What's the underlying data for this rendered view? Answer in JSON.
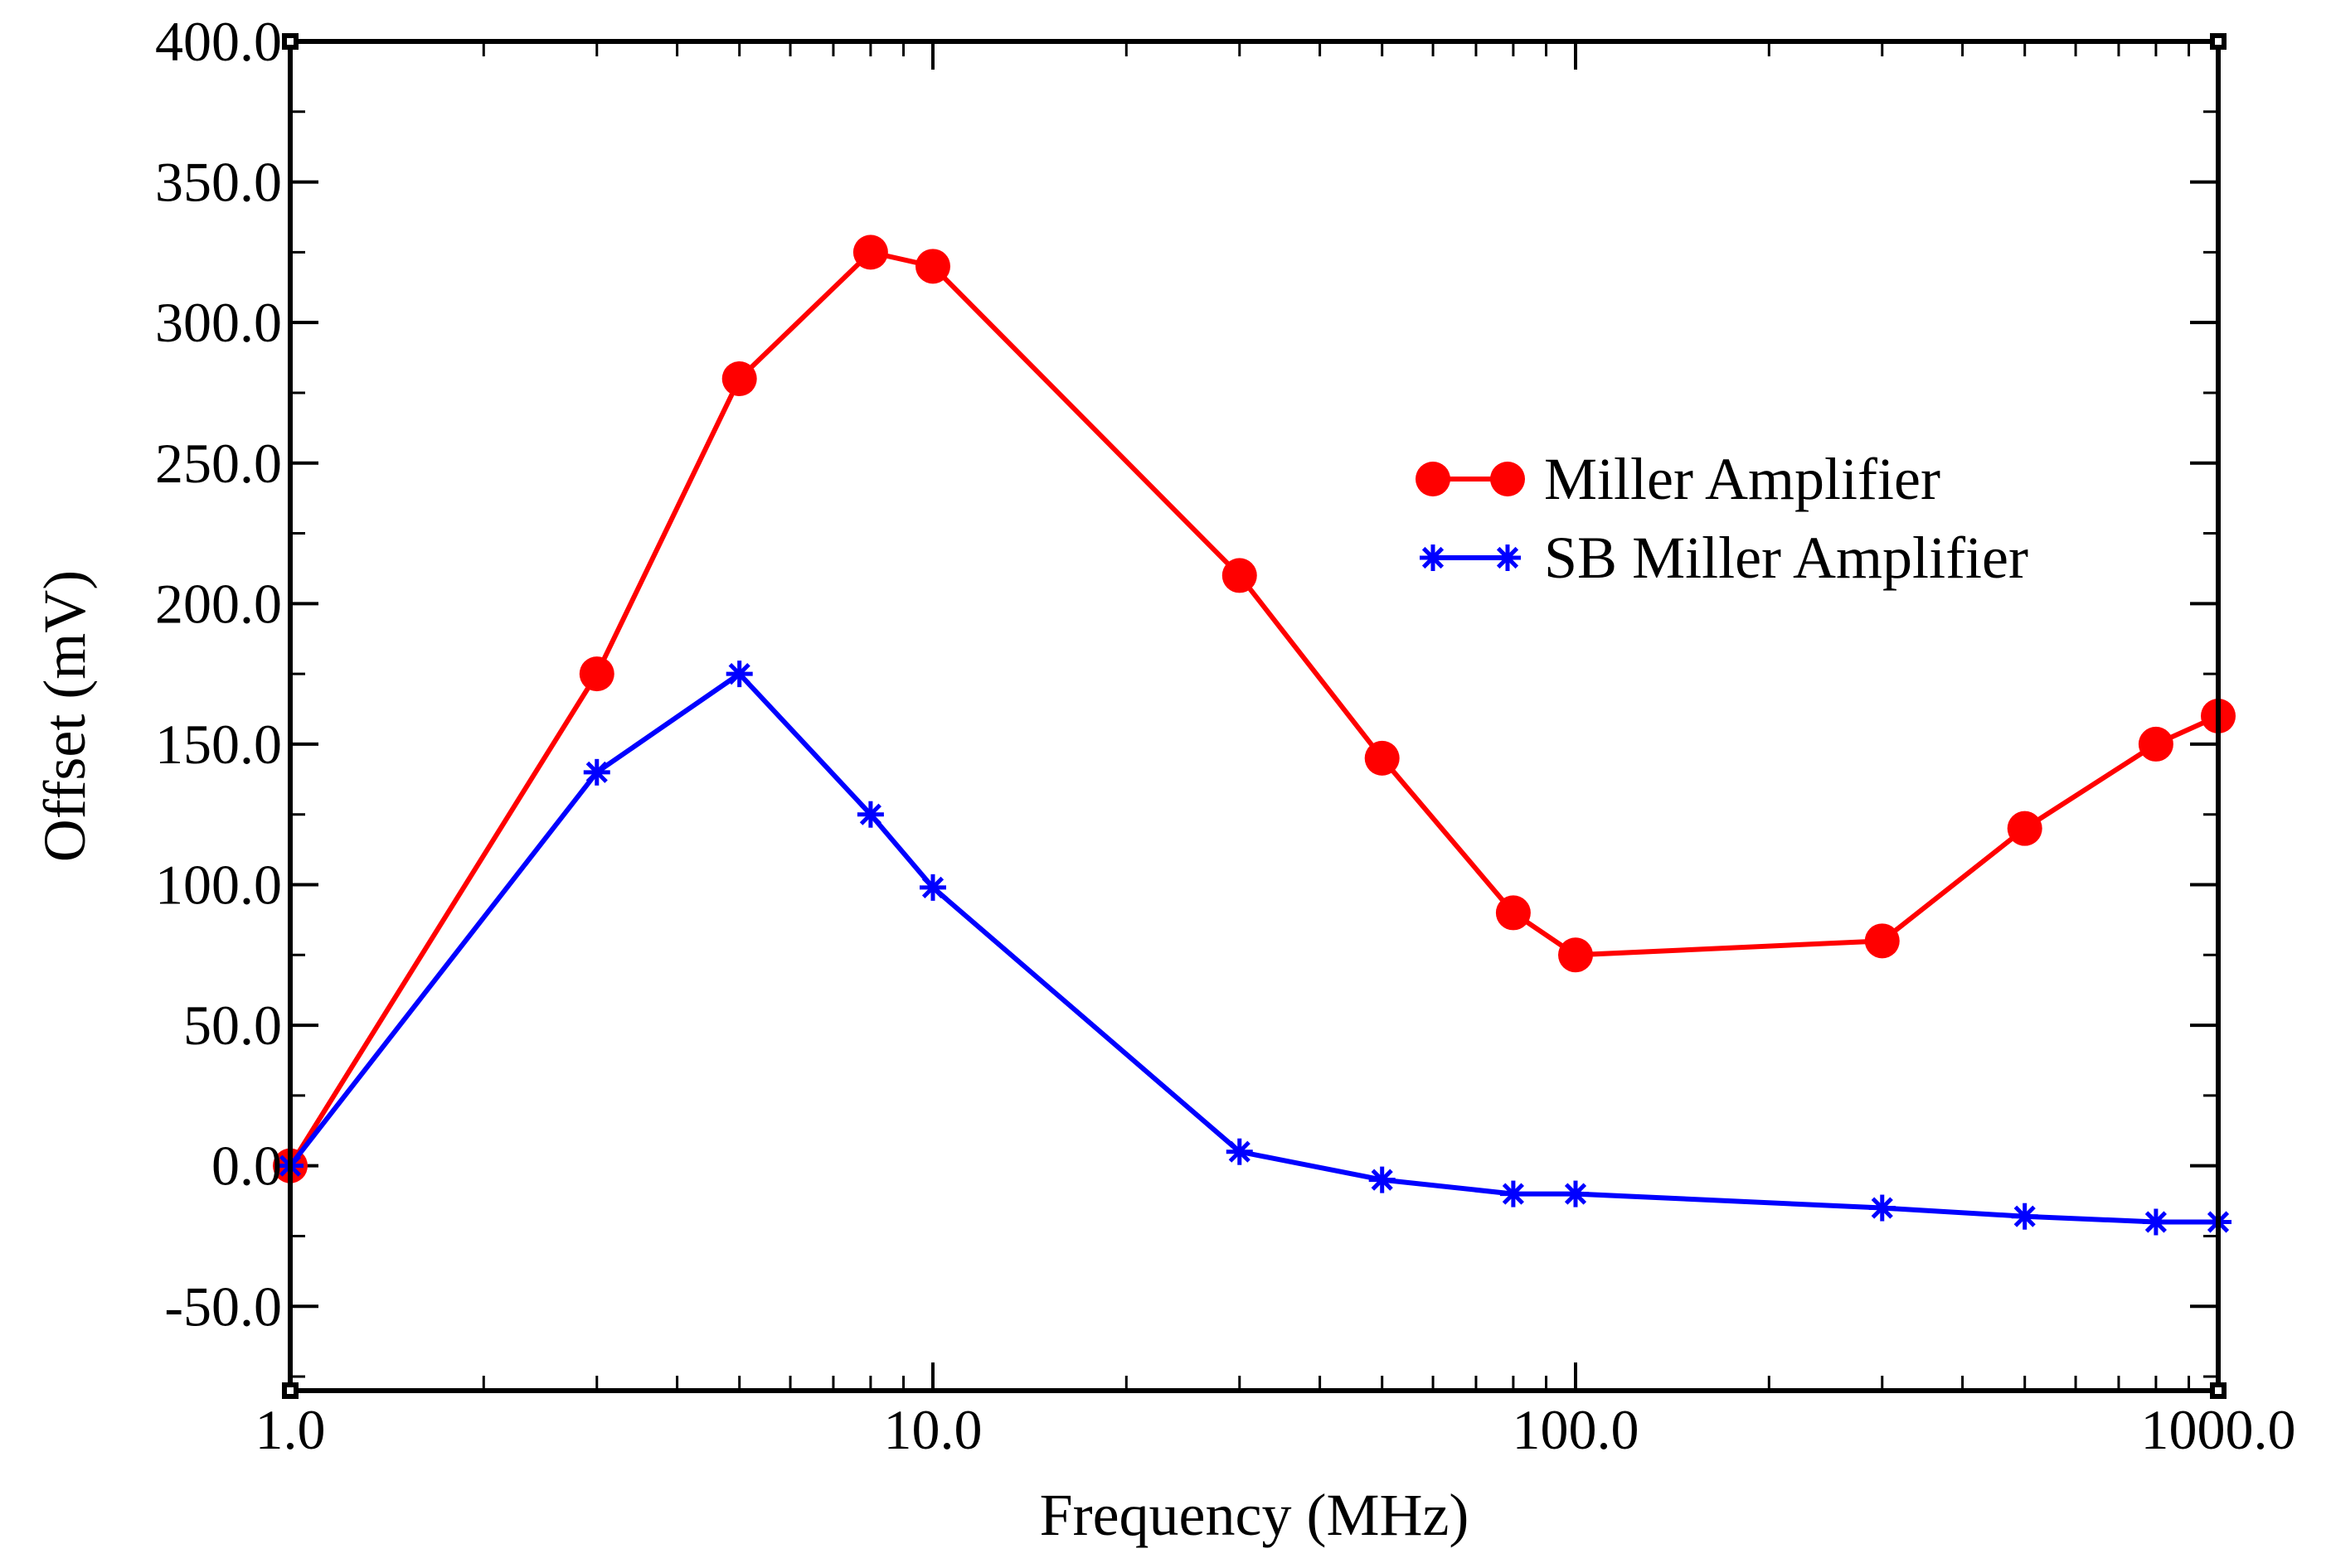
{
  "chart_data": {
    "type": "line",
    "title": "",
    "xlabel": "Frequency (MHz)",
    "ylabel": "Offset (mV)",
    "xscale": "log",
    "xlim": [
      1.0,
      1000.0
    ],
    "ylim": [
      -80.0,
      400.0
    ],
    "xticks": [
      1.0,
      10.0,
      100.0,
      1000.0
    ],
    "xtick_labels": [
      "1.0",
      "10.0",
      "100.0",
      "1000.0"
    ],
    "yticks": [
      -50,
      0,
      50,
      100,
      150,
      200,
      250,
      300,
      350,
      400
    ],
    "ytick_labels": [
      "-50.0",
      "0.0",
      "50.0",
      "100.0",
      "150.0",
      "200.0",
      "250.0",
      "300.0",
      "350.0",
      "400.0"
    ],
    "legend_position": "center-right",
    "grid": false,
    "series": [
      {
        "name": "Miller Amplifier",
        "color": "#ff0000",
        "marker": "circle",
        "x": [
          1,
          3,
          5,
          8,
          10,
          30,
          50,
          80,
          100,
          300,
          500,
          800,
          1000
        ],
        "values": [
          0,
          175,
          280,
          325,
          320,
          210,
          145,
          90,
          75,
          80,
          120,
          150,
          160
        ]
      },
      {
        "name": "SB Miller Amplifier",
        "color": "#0000ff",
        "marker": "asterisk",
        "x": [
          1,
          3,
          5,
          8,
          10,
          30,
          50,
          80,
          100,
          300,
          500,
          800,
          1000
        ],
        "values": [
          0,
          140,
          175,
          125,
          99,
          5,
          -5,
          -10,
          -10,
          -15,
          -18,
          -20,
          -20
        ]
      }
    ]
  }
}
